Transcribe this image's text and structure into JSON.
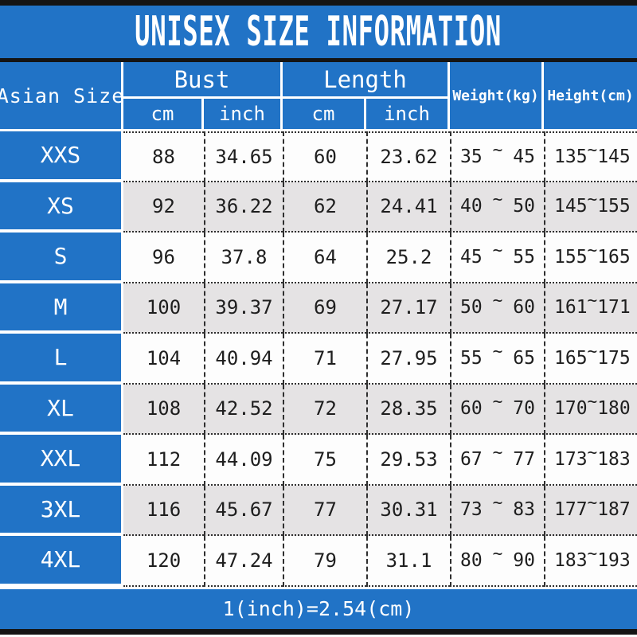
{
  "title": "UNISEX SIZE INFORMATION",
  "footer": "1(inch)=2.54(cm)",
  "tilde": "~",
  "header": {
    "size": "Asian Size",
    "bust": "Bust",
    "length": "Length",
    "weight": "Weight(kg)",
    "height": "Height(cm)",
    "cm": "cm",
    "inch": "inch"
  },
  "rows": [
    {
      "size": "XXS",
      "bust_cm": "88",
      "bust_inch": "34.65",
      "len_cm": "60",
      "len_inch": "23.62",
      "weight_min": "35",
      "weight_max": "45",
      "height_min": "135",
      "height_max": "145"
    },
    {
      "size": "XS",
      "bust_cm": "92",
      "bust_inch": "36.22",
      "len_cm": "62",
      "len_inch": "24.41",
      "weight_min": "40",
      "weight_max": "50",
      "height_min": "145",
      "height_max": "155"
    },
    {
      "size": "S",
      "bust_cm": "96",
      "bust_inch": "37.8",
      "len_cm": "64",
      "len_inch": "25.2",
      "weight_min": "45",
      "weight_max": "55",
      "height_min": "155",
      "height_max": "165"
    },
    {
      "size": "M",
      "bust_cm": "100",
      "bust_inch": "39.37",
      "len_cm": "69",
      "len_inch": "27.17",
      "weight_min": "50",
      "weight_max": "60",
      "height_min": "161",
      "height_max": "171"
    },
    {
      "size": "L",
      "bust_cm": "104",
      "bust_inch": "40.94",
      "len_cm": "71",
      "len_inch": "27.95",
      "weight_min": "55",
      "weight_max": "65",
      "height_min": "165",
      "height_max": "175"
    },
    {
      "size": "XL",
      "bust_cm": "108",
      "bust_inch": "42.52",
      "len_cm": "72",
      "len_inch": "28.35",
      "weight_min": "60",
      "weight_max": "70",
      "height_min": "170",
      "height_max": "180"
    },
    {
      "size": "XXL",
      "bust_cm": "112",
      "bust_inch": "44.09",
      "len_cm": "75",
      "len_inch": "29.53",
      "weight_min": "67",
      "weight_max": "77",
      "height_min": "173",
      "height_max": "183"
    },
    {
      "size": "3XL",
      "bust_cm": "116",
      "bust_inch": "45.67",
      "len_cm": "77",
      "len_inch": "30.31",
      "weight_min": "73",
      "weight_max": "83",
      "height_min": "177",
      "height_max": "187"
    },
    {
      "size": "4XL",
      "bust_cm": "120",
      "bust_inch": "47.24",
      "len_cm": "79",
      "len_inch": "31.1",
      "weight_min": "80",
      "weight_max": "90",
      "height_min": "183",
      "height_max": "193"
    }
  ],
  "colors": {
    "blue": "#2173C6",
    "row_alt": "#E5E3E4",
    "border_bar": "#141414",
    "ink": "#1e1e1e"
  },
  "chart_data": {
    "type": "table",
    "title": "UNISEX SIZE INFORMATION",
    "columns": [
      "Asian Size",
      "Bust cm",
      "Bust inch",
      "Length cm",
      "Length inch",
      "Weight(kg)",
      "Height(cm)"
    ],
    "rows": [
      [
        "XXS",
        "88",
        "34.65",
        "60",
        "23.62",
        "35 ~ 45",
        "135 ~ 145"
      ],
      [
        "XS",
        "92",
        "36.22",
        "62",
        "24.41",
        "40 ~ 50",
        "145 ~ 155"
      ],
      [
        "S",
        "96",
        "37.8",
        "64",
        "25.2",
        "45 ~ 55",
        "155 ~ 165"
      ],
      [
        "M",
        "100",
        "39.37",
        "69",
        "27.17",
        "50 ~ 60",
        "161 ~ 171"
      ],
      [
        "L",
        "104",
        "40.94",
        "71",
        "27.95",
        "55 ~ 65",
        "165 ~ 175"
      ],
      [
        "XL",
        "108",
        "42.52",
        "72",
        "28.35",
        "60 ~ 70",
        "170 ~ 180"
      ],
      [
        "XXL",
        "112",
        "44.09",
        "75",
        "29.53",
        "67 ~ 77",
        "173 ~ 183"
      ],
      [
        "3XL",
        "116",
        "45.67",
        "77",
        "30.31",
        "73 ~ 83",
        "177 ~ 187"
      ],
      [
        "4XL",
        "120",
        "47.24",
        "79",
        "31.1",
        "80 ~ 90",
        "183 ~ 193"
      ]
    ],
    "footnote": "1(inch)=2.54(cm)"
  }
}
